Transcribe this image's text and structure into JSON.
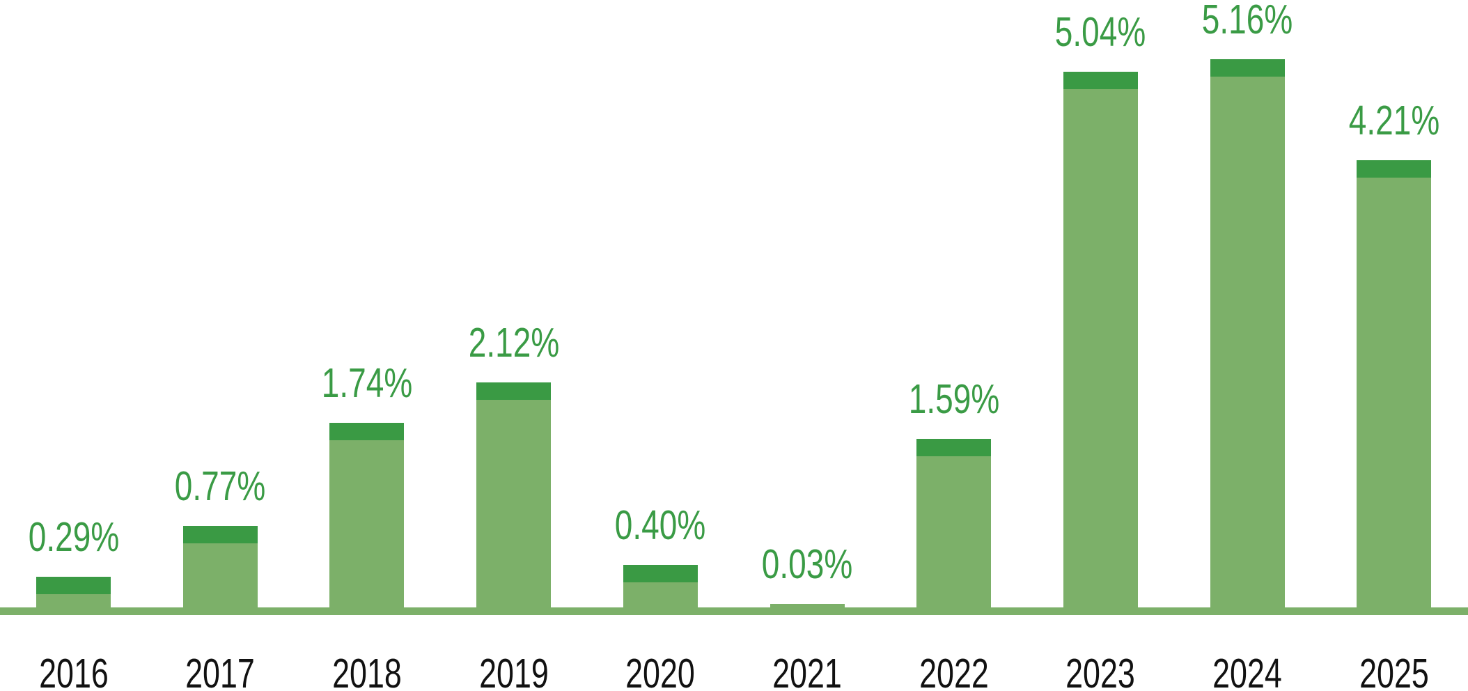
{
  "chart_data": {
    "type": "bar",
    "title": "",
    "xlabel": "",
    "ylabel": "",
    "categories": [
      "2016",
      "2017",
      "2018",
      "2019",
      "2020",
      "2021",
      "2022",
      "2023",
      "2024",
      "2025"
    ],
    "values": [
      0.29,
      0.77,
      1.74,
      2.12,
      0.4,
      0.03,
      1.59,
      5.04,
      5.16,
      4.21
    ],
    "data_labels": [
      "0.29%",
      "0.77%",
      "1.74%",
      "2.12%",
      "0.40%",
      "0.03%",
      "1.59%",
      "5.04%",
      "5.16%",
      "4.21%"
    ],
    "ylim": [
      0,
      5.5
    ],
    "grid": false,
    "legend": false,
    "colors": {
      "background": "#FFFFFF",
      "bar_body": "#7CB069",
      "bar_cap": "#3A9A44",
      "baseline": "#7CB069",
      "data_label": "#3A9B45",
      "category_label": "#111111"
    }
  }
}
